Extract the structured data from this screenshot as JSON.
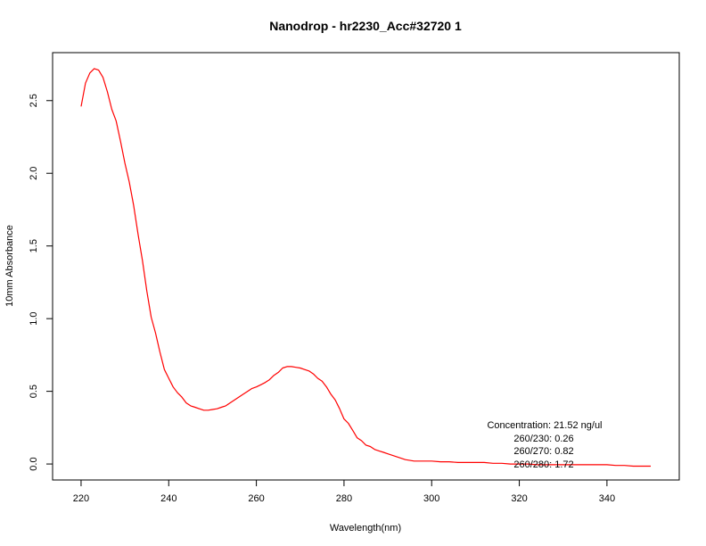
{
  "chart_data": {
    "type": "line",
    "title": "Nanodrop - hr2230_Acc#32720 1",
    "xlabel": "Wavelength(nm)",
    "ylabel": "10mm Absorbance",
    "xlim": [
      213.5,
      356.5
    ],
    "ylim": [
      -0.11,
      2.83
    ],
    "x_ticks": [
      220,
      240,
      260,
      280,
      300,
      320,
      340
    ],
    "y_ticks": [
      0.0,
      0.5,
      1.0,
      1.5,
      2.0,
      2.5
    ],
    "x_tick_labels": [
      "220",
      "240",
      "260",
      "280",
      "300",
      "320",
      "340"
    ],
    "y_tick_labels": [
      "0.0",
      "0.5",
      "1.0",
      "1.5",
      "2.0",
      "2.5"
    ],
    "grid": false,
    "series": [
      {
        "color": "#ff0000",
        "x": [
          220,
          221,
          222,
          223,
          224,
          225,
          226,
          227,
          228,
          229,
          230,
          231,
          232,
          233,
          234,
          235,
          236,
          237,
          238,
          239,
          240,
          241,
          242,
          243,
          244,
          245,
          246,
          247,
          248,
          249,
          250,
          251,
          252,
          253,
          254,
          255,
          256,
          257,
          258,
          259,
          260,
          261,
          262,
          263,
          264,
          265,
          266,
          267,
          268,
          269,
          270,
          271,
          272,
          273,
          274,
          275,
          276,
          277,
          278,
          279,
          280,
          281,
          282,
          283,
          284,
          285,
          286,
          287,
          288,
          289,
          290,
          292,
          294,
          296,
          298,
          300,
          302,
          304,
          306,
          308,
          310,
          312,
          314,
          316,
          318,
          320,
          322,
          324,
          326,
          328,
          330,
          332,
          334,
          336,
          338,
          340,
          342,
          344,
          346,
          348,
          350
        ],
        "values": [
          2.46,
          2.62,
          2.69,
          2.72,
          2.71,
          2.66,
          2.56,
          2.44,
          2.36,
          2.22,
          2.07,
          1.94,
          1.78,
          1.58,
          1.4,
          1.19,
          1.01,
          0.9,
          0.77,
          0.65,
          0.59,
          0.53,
          0.49,
          0.46,
          0.42,
          0.4,
          0.39,
          0.38,
          0.37,
          0.37,
          0.375,
          0.38,
          0.39,
          0.4,
          0.42,
          0.44,
          0.46,
          0.48,
          0.5,
          0.52,
          0.53,
          0.545,
          0.56,
          0.58,
          0.61,
          0.63,
          0.66,
          0.67,
          0.67,
          0.665,
          0.66,
          0.65,
          0.64,
          0.62,
          0.59,
          0.57,
          0.53,
          0.48,
          0.44,
          0.38,
          0.31,
          0.28,
          0.23,
          0.18,
          0.16,
          0.13,
          0.12,
          0.1,
          0.09,
          0.08,
          0.07,
          0.05,
          0.03,
          0.02,
          0.02,
          0.02,
          0.015,
          0.015,
          0.01,
          0.01,
          0.01,
          0.01,
          0.005,
          0.005,
          0.0,
          0.0,
          0.0,
          -0.005,
          -0.005,
          -0.005,
          -0.005,
          -0.005,
          -0.005,
          -0.005,
          -0.005,
          -0.005,
          -0.01,
          -0.01,
          -0.015,
          -0.015,
          -0.015
        ]
      }
    ],
    "annotations": {
      "concentration": "Concentration: 21.52 ng/ul",
      "ratio_260_230": "260/230: 0.26",
      "ratio_260_270": "260/270: 0.82",
      "ratio_260_280": "260/280: 1.72"
    }
  }
}
